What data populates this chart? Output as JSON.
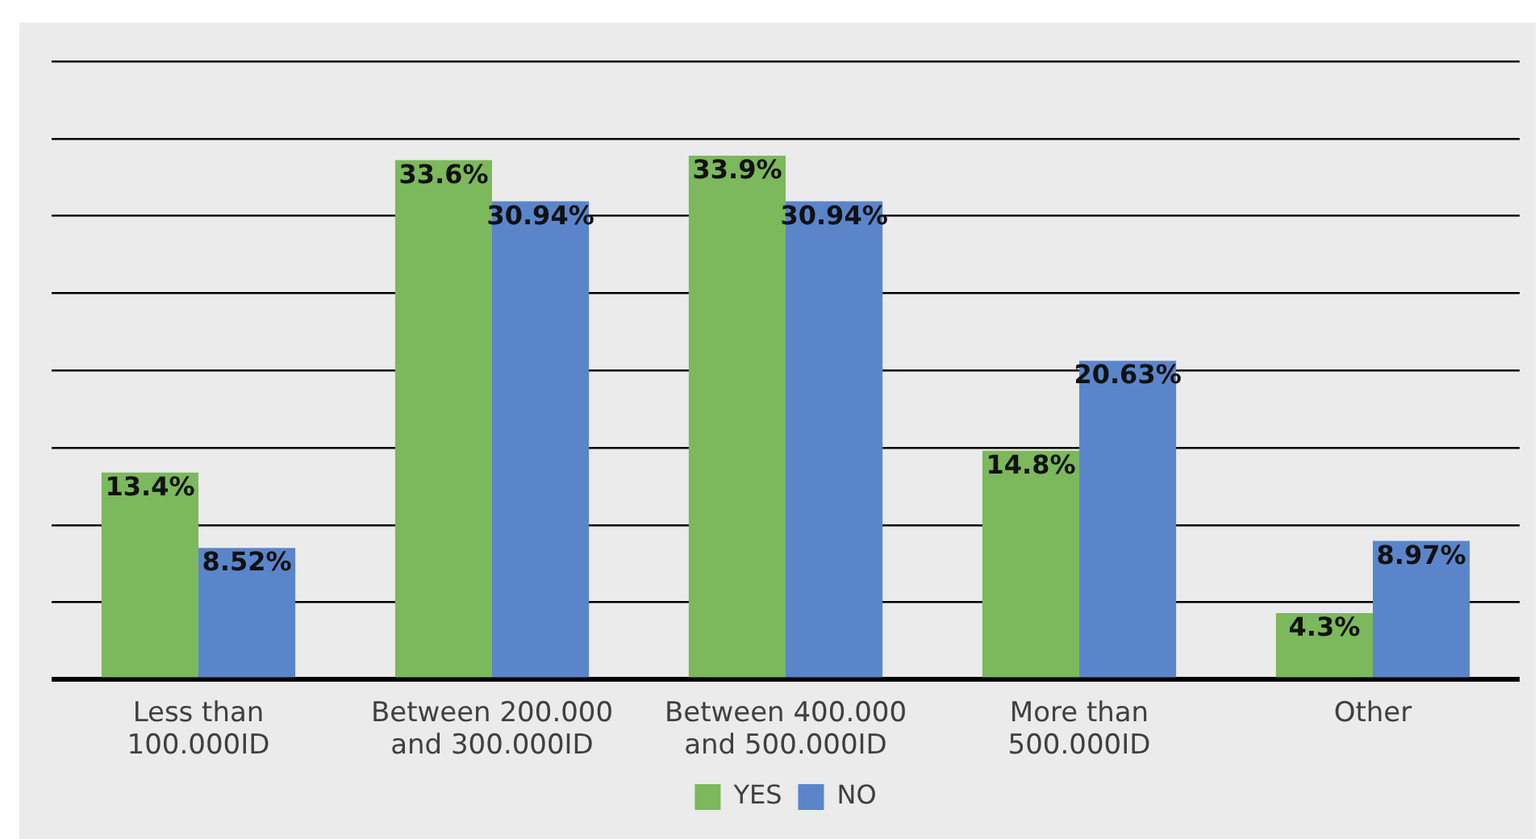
{
  "chart_data": {
    "type": "bar",
    "categories": [
      "Less than 100.000ID",
      "Between 200.000 and 300.000ID",
      "Between 400.000 and 500.000ID",
      "More than 500.000ID",
      "Other"
    ],
    "series": [
      {
        "name": "YES",
        "color": "#7cb85c",
        "values": [
          13.4,
          33.6,
          33.9,
          14.8,
          4.3
        ],
        "value_labels": [
          "13.4%",
          "33.6%",
          "33.9%",
          "14.8%",
          "4.3%"
        ]
      },
      {
        "name": "NO",
        "color": "#5b85cb",
        "values": [
          8.52,
          30.94,
          30.94,
          20.63,
          8.97
        ],
        "value_labels": [
          "8.52%",
          "30.94%",
          "30.94%",
          "20.63%",
          "8.97%"
        ]
      }
    ],
    "ylim": [
      0,
      40
    ],
    "yticks": [
      {
        "value": 0,
        "label": null
      },
      {
        "value": 5,
        "label": null
      },
      {
        "value": 10,
        "label": null
      },
      {
        "value": 15,
        "label": null
      },
      {
        "value": 20,
        "label": null
      },
      {
        "value": 25,
        "label": null
      },
      {
        "value": 30,
        "label": null
      },
      {
        "value": 35,
        "label": null
      },
      {
        "value": 40,
        "label": null
      }
    ],
    "tick_labels": "x",
    "grid": "y",
    "legend": "bottom"
  }
}
